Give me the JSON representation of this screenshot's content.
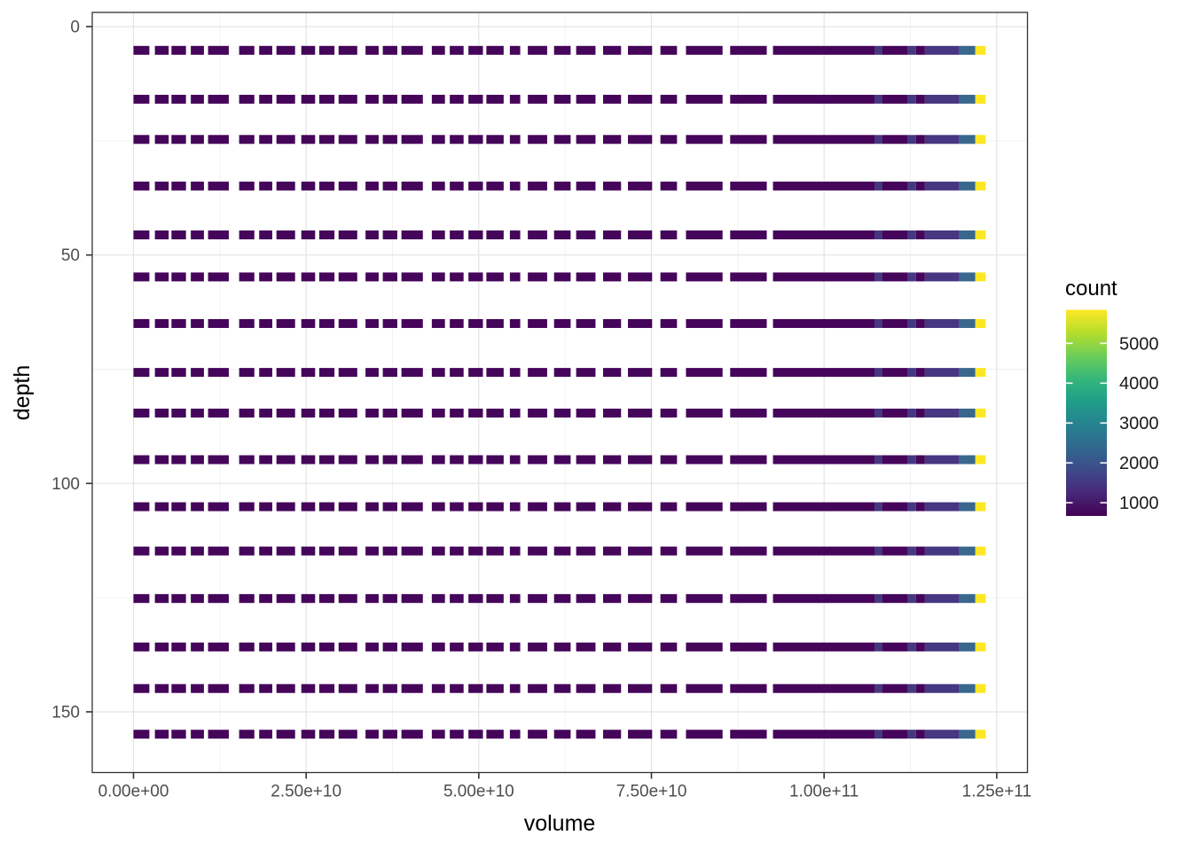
{
  "chart_data": {
    "type": "heatmap",
    "title": "",
    "xlabel": "volume",
    "ylabel": "depth",
    "legend_title": "count",
    "x_tick_labels": [
      "0.00e+00",
      "2.50e+10",
      "5.00e+10",
      "7.50e+10",
      "1.00e+11",
      "1.25e+11"
    ],
    "x_tick_values_e9": [
      0,
      25,
      50,
      75,
      100,
      125
    ],
    "x_minor_values_e9": [
      12.5,
      37.5,
      62.5,
      87.5,
      112.5
    ],
    "y_tick_labels": [
      "0",
      "50",
      "100",
      "150"
    ],
    "y_tick_values": [
      0,
      50,
      100,
      150
    ],
    "y_minor_values": [
      25,
      75,
      125
    ],
    "y_axis_reversed": true,
    "xlim_e9": [
      -6.0,
      129.5
    ],
    "ylim": [
      -3.2,
      163.3
    ],
    "grid": true,
    "legend_position": "right",
    "legend_tick_labels": [
      "5000",
      "4000",
      "3000",
      "2000",
      "1000"
    ],
    "legend_tick_values": [
      5000,
      4000,
      3000,
      2000,
      1000
    ],
    "legend_range_estimate": [
      670,
      5840
    ],
    "row_depths": [
      5.2,
      15.9,
      24.7,
      34.9,
      45.6,
      54.8,
      65.0,
      75.7,
      84.6,
      94.8,
      105.1,
      114.8,
      125.2,
      135.8,
      144.9,
      154.9
    ],
    "tile_colors": {
      "low": "#45055a",
      "mid1": "#453781",
      "mid2": "#3a678e",
      "high": "#fde725"
    },
    "viridis_stops": [
      "#440154",
      "#482878",
      "#3e4a89",
      "#31688e",
      "#26828e",
      "#1f9e89",
      "#35b779",
      "#6ece58",
      "#b5de2b",
      "#fde725"
    ],
    "row_dash_segments_e9": [
      [
        0.0,
        2.3
      ],
      [
        3.1,
        5.1
      ],
      [
        5.5,
        7.6
      ],
      [
        8.3,
        10.2
      ],
      [
        10.8,
        13.8
      ],
      [
        15.3,
        17.5
      ],
      [
        18.2,
        20.1
      ],
      [
        20.7,
        23.4
      ],
      [
        24.3,
        26.3
      ],
      [
        26.9,
        29.1
      ],
      [
        29.7,
        32.4
      ],
      [
        33.6,
        35.5
      ],
      [
        36.1,
        38.2
      ],
      [
        38.8,
        41.9
      ],
      [
        43.2,
        45.1
      ],
      [
        45.8,
        47.8
      ],
      [
        48.5,
        50.6
      ],
      [
        51.1,
        53.6
      ],
      [
        54.5,
        56.0
      ],
      [
        57.1,
        59.9
      ],
      [
        60.9,
        63.3
      ],
      [
        64.1,
        66.9
      ],
      [
        68.0,
        70.6
      ],
      [
        71.6,
        75.1
      ],
      [
        76.3,
        78.7
      ],
      [
        80.0,
        85.3
      ],
      [
        86.4,
        91.7
      ]
    ],
    "row_tail_segments_e9": [
      [
        92.6,
        107.35,
        "low"
      ],
      [
        107.35,
        108.4,
        "mid1"
      ],
      [
        108.4,
        112.05,
        "low"
      ],
      [
        112.05,
        113.3,
        "mid1"
      ],
      [
        113.3,
        114.6,
        "low"
      ],
      [
        114.6,
        119.6,
        "mid1"
      ],
      [
        119.6,
        121.9,
        "mid2"
      ],
      [
        121.9,
        123.4,
        "high"
      ]
    ],
    "theme": {
      "panel_background": "#ffffff",
      "panel_border": "#333333",
      "grid_major": "#e4e4e4",
      "grid_minor": "#f0f0f0",
      "tick_color": "#333333"
    }
  }
}
